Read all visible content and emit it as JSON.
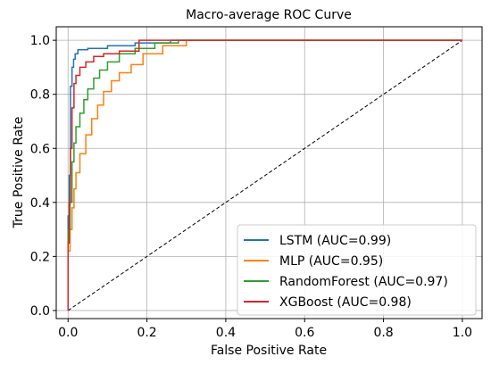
{
  "chart_data": {
    "type": "line",
    "title": "Macro-average ROC Curve",
    "xlabel": "False Positive Rate",
    "ylabel": "True Positive Rate",
    "xlim": [
      -0.03,
      1.05
    ],
    "ylim": [
      -0.03,
      1.05
    ],
    "xticks": [
      "0.0",
      "0.2",
      "0.4",
      "0.6",
      "0.8",
      "1.0"
    ],
    "yticks": [
      "0.0",
      "0.2",
      "0.4",
      "0.6",
      "0.8",
      "1.0"
    ],
    "grid": true,
    "legend_position": "lower-right",
    "diagonal": {
      "x": [
        0,
        1
      ],
      "y": [
        0,
        1
      ],
      "color": "#000000",
      "dash": true
    },
    "series": [
      {
        "name": "LSTM (AUC=0.99)",
        "color": "#1f77b4",
        "x": [
          0.0,
          0.0,
          0.003,
          0.003,
          0.006,
          0.006,
          0.01,
          0.01,
          0.014,
          0.014,
          0.018,
          0.018,
          0.025,
          0.025,
          0.05,
          0.05,
          0.1,
          0.1,
          0.17,
          0.17,
          0.26,
          0.26,
          1.0
        ],
        "y": [
          0.0,
          0.35,
          0.35,
          0.5,
          0.5,
          0.83,
          0.83,
          0.9,
          0.9,
          0.93,
          0.93,
          0.95,
          0.95,
          0.965,
          0.965,
          0.97,
          0.97,
          0.98,
          0.98,
          0.99,
          0.99,
          1.0,
          1.0
        ]
      },
      {
        "name": "MLP (AUC=0.95)",
        "color": "#ff7f0e",
        "x": [
          0.0,
          0.0,
          0.005,
          0.005,
          0.01,
          0.01,
          0.015,
          0.015,
          0.02,
          0.02,
          0.03,
          0.03,
          0.045,
          0.045,
          0.06,
          0.06,
          0.075,
          0.075,
          0.09,
          0.09,
          0.11,
          0.11,
          0.13,
          0.13,
          0.16,
          0.16,
          0.19,
          0.19,
          0.24,
          0.24,
          0.3,
          0.3,
          1.0
        ],
        "y": [
          0.0,
          0.22,
          0.22,
          0.3,
          0.3,
          0.38,
          0.38,
          0.45,
          0.45,
          0.51,
          0.51,
          0.58,
          0.58,
          0.65,
          0.65,
          0.71,
          0.71,
          0.76,
          0.76,
          0.81,
          0.81,
          0.85,
          0.85,
          0.88,
          0.88,
          0.91,
          0.91,
          0.95,
          0.95,
          0.98,
          0.98,
          1.0,
          1.0
        ]
      },
      {
        "name": "RandomForest (AUC=0.97)",
        "color": "#2ca02c",
        "x": [
          0.0,
          0.0,
          0.005,
          0.005,
          0.01,
          0.01,
          0.015,
          0.015,
          0.02,
          0.02,
          0.03,
          0.03,
          0.04,
          0.04,
          0.05,
          0.05,
          0.065,
          0.065,
          0.08,
          0.08,
          0.1,
          0.1,
          0.13,
          0.13,
          0.17,
          0.17,
          0.22,
          0.22,
          0.28,
          0.28,
          1.0
        ],
        "y": [
          0.0,
          0.3,
          0.3,
          0.4,
          0.4,
          0.55,
          0.55,
          0.62,
          0.62,
          0.68,
          0.68,
          0.73,
          0.73,
          0.78,
          0.78,
          0.82,
          0.82,
          0.86,
          0.86,
          0.89,
          0.89,
          0.92,
          0.92,
          0.95,
          0.95,
          0.97,
          0.97,
          0.99,
          0.99,
          1.0,
          1.0
        ]
      },
      {
        "name": "XGBoost (AUC=0.98)",
        "color": "#d62728",
        "x": [
          0.0,
          0.0,
          0.003,
          0.003,
          0.006,
          0.006,
          0.01,
          0.01,
          0.015,
          0.015,
          0.02,
          0.02,
          0.03,
          0.03,
          0.045,
          0.045,
          0.065,
          0.065,
          0.09,
          0.09,
          0.13,
          0.13,
          0.18,
          0.18,
          1.0
        ],
        "y": [
          0.0,
          0.25,
          0.25,
          0.4,
          0.4,
          0.6,
          0.6,
          0.75,
          0.75,
          0.84,
          0.84,
          0.87,
          0.87,
          0.9,
          0.9,
          0.92,
          0.92,
          0.94,
          0.94,
          0.95,
          0.95,
          0.96,
          0.96,
          1.0,
          1.0
        ]
      }
    ]
  }
}
